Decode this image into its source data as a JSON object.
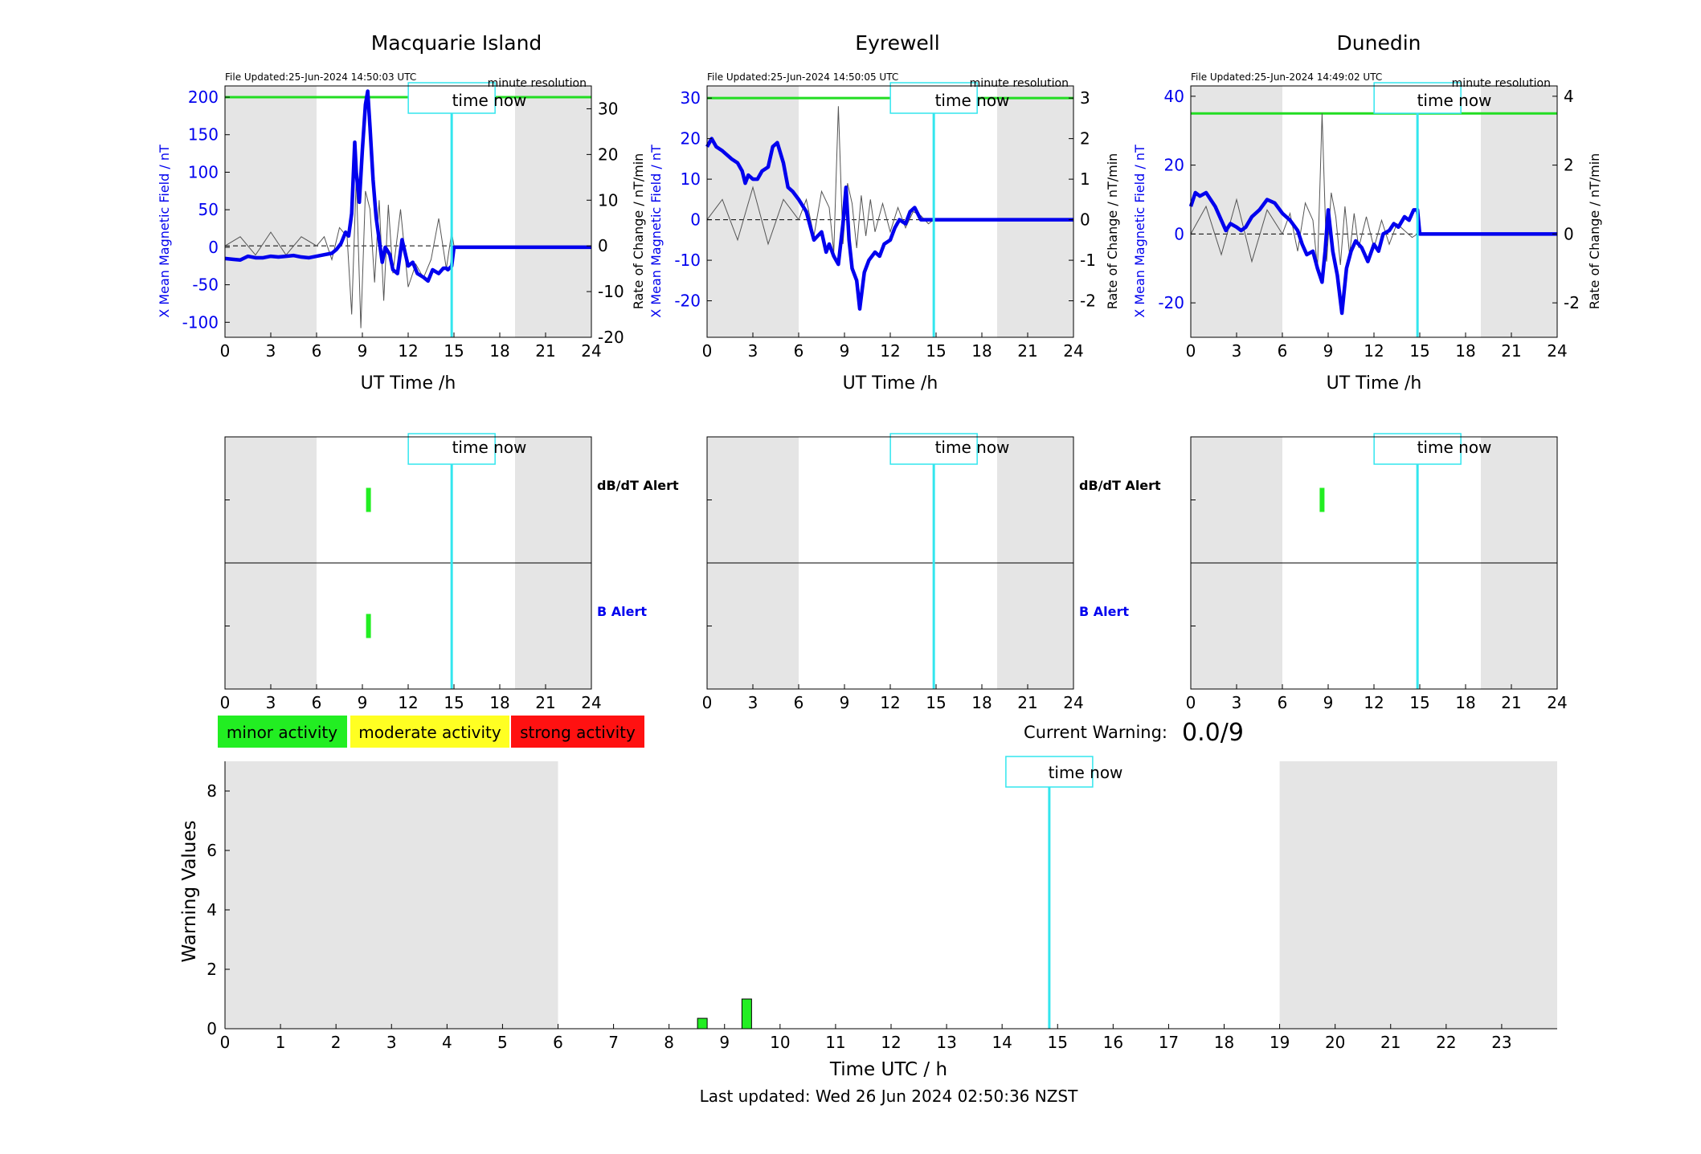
{
  "colors": {
    "shade": "#e5e5e5",
    "x_field": "#0000ee",
    "rate": "#555555",
    "threshold": "#22dd22",
    "time_now": "#33e6ee",
    "minor": "#22ee22",
    "moderate": "#ffff22",
    "strong": "#ff1111",
    "b_alert_label": "#0000ee"
  },
  "time_now_label": "time now",
  "resolution_label": "minute resolution",
  "xlabel_station": "UT Time /h",
  "ylabel_left": "X Mean Magnetic Field / nT",
  "ylabel_right": "Rate of Change / nT/min",
  "alert_labels": {
    "dbdt": "dB/dT Alert",
    "b": "B Alert"
  },
  "legend": {
    "minor": "minor activity",
    "moderate": "moderate activity",
    "strong": "strong activity"
  },
  "current_warning": {
    "label": "Current Warning:",
    "value": "0.0/9"
  },
  "last_updated": "Last updated: Wed 26 Jun 2024 02:50:36 NZST",
  "chart_data": [
    {
      "type": "line",
      "station": "Macquarie Island",
      "file_updated": "File Updated:25-Jun-2024 14:50:03 UTC",
      "xlim": [
        0,
        24
      ],
      "xticks": [
        0,
        3,
        6,
        9,
        12,
        15,
        18,
        21,
        24
      ],
      "ylim_left": [
        -120,
        215
      ],
      "yticks_left": [
        -100,
        -50,
        0,
        50,
        100,
        150,
        200
      ],
      "ylim_right": [
        -20,
        35
      ],
      "yticks_right": [
        -20,
        -10,
        0,
        10,
        20,
        30
      ],
      "threshold_left": 200,
      "time_now": 14.85,
      "night_shading": [
        [
          0,
          6
        ],
        [
          19,
          24
        ]
      ],
      "series": [
        {
          "axis": "left",
          "x": [
            0,
            0.5,
            1,
            1.5,
            2,
            2.5,
            3,
            3.5,
            4,
            4.5,
            5,
            5.5,
            6,
            6.5,
            7,
            7.3,
            7.6,
            7.9,
            8.1,
            8.3,
            8.5,
            8.6,
            8.8,
            9.0,
            9.2,
            9.35,
            9.5,
            9.7,
            9.9,
            10.1,
            10.3,
            10.5,
            10.8,
            11.0,
            11.3,
            11.6,
            12.0,
            12.3,
            12.6,
            13.0,
            13.3,
            13.6,
            14.0,
            14.3,
            14.5,
            14.6,
            14.7,
            14.85,
            15,
            24
          ],
          "y": [
            -15,
            -16,
            -17,
            -12,
            -14,
            -14,
            -12,
            -13,
            -12,
            -11,
            -13,
            -14,
            -12,
            -10,
            -8,
            -3,
            5,
            20,
            15,
            45,
            140,
            100,
            60,
            130,
            190,
            208,
            160,
            90,
            40,
            10,
            -20,
            0,
            -10,
            -30,
            -35,
            10,
            -25,
            -20,
            -35,
            -40,
            -45,
            -30,
            -35,
            -28,
            -28,
            -30,
            -28,
            -25,
            0,
            0
          ]
        },
        {
          "axis": "right",
          "x": [
            0,
            1,
            2,
            3,
            4,
            5,
            6,
            6.5,
            7,
            7.5,
            8,
            8.3,
            8.6,
            8.9,
            9.2,
            9.5,
            9.8,
            10.1,
            10.4,
            10.7,
            11,
            11.5,
            12,
            12.5,
            13,
            13.5,
            14,
            14.5,
            14.85,
            15,
            24
          ],
          "y": [
            0,
            2,
            -2,
            3,
            -2,
            2,
            0,
            2,
            -3,
            4,
            2,
            -15,
            15,
            -18,
            12,
            8,
            -8,
            10,
            -12,
            9,
            -6,
            8,
            -9,
            -4,
            -7,
            -3,
            6,
            -5,
            3,
            0,
            0
          ]
        }
      ]
    },
    {
      "type": "line",
      "station": "Eyrewell",
      "file_updated": "File Updated:25-Jun-2024 14:50:05 UTC",
      "xlim": [
        0,
        24
      ],
      "xticks": [
        0,
        3,
        6,
        9,
        12,
        15,
        18,
        21,
        24
      ],
      "ylim_left": [
        -29,
        33
      ],
      "yticks_left": [
        -20,
        -10,
        0,
        10,
        20,
        30
      ],
      "ylim_right": [
        -2.9,
        3.3
      ],
      "yticks_right": [
        -2,
        -1,
        0,
        1,
        2,
        3
      ],
      "threshold_left": 30,
      "time_now": 14.85,
      "night_shading": [
        [
          0,
          6
        ],
        [
          19,
          24
        ]
      ],
      "series": [
        {
          "axis": "left",
          "x": [
            0,
            0.3,
            0.6,
            1,
            1.3,
            1.6,
            2,
            2.3,
            2.5,
            2.7,
            3,
            3.3,
            3.6,
            4.0,
            4.3,
            4.6,
            5.0,
            5.3,
            5.6,
            6.0,
            6.5,
            7.0,
            7.5,
            7.8,
            8.0,
            8.3,
            8.6,
            8.9,
            9.1,
            9.3,
            9.5,
            9.8,
            10.0,
            10.3,
            10.6,
            11.0,
            11.3,
            11.6,
            12.0,
            12.3,
            12.6,
            13.0,
            13.3,
            13.6,
            14.0,
            14.3,
            14.85,
            15,
            24
          ],
          "y": [
            18,
            20,
            18,
            17,
            16,
            15,
            14,
            12,
            9,
            11,
            10,
            10,
            12,
            13,
            18,
            19,
            14,
            8,
            7,
            5,
            2,
            -5,
            -3,
            -8,
            -6,
            -9,
            -11,
            -1,
            8,
            -5,
            -12,
            -15,
            -22,
            -13,
            -10,
            -8,
            -9,
            -6,
            -5,
            -2,
            0,
            -1,
            2,
            3,
            0,
            0,
            0,
            0,
            0
          ]
        },
        {
          "axis": "right",
          "x": [
            0,
            1,
            2,
            3,
            4,
            5,
            6,
            6.5,
            7,
            7.5,
            8,
            8.3,
            8.6,
            8.9,
            9.2,
            9.5,
            9.8,
            10.1,
            10.4,
            10.7,
            11,
            11.5,
            12,
            12.5,
            13,
            13.5,
            14,
            14.5,
            14.85,
            15,
            24
          ],
          "y": [
            0,
            0.5,
            -0.5,
            0.8,
            -0.6,
            0.5,
            0,
            0.5,
            -0.4,
            0.7,
            0.3,
            -0.8,
            2.8,
            -0.6,
            0.9,
            0.4,
            -0.7,
            0.6,
            -0.4,
            0.5,
            -0.3,
            0.4,
            -0.3,
            0.3,
            -0.2,
            0.2,
            0.1,
            -0.1,
            0,
            0,
            0
          ]
        }
      ]
    },
    {
      "type": "line",
      "station": "Dunedin",
      "file_updated": "File Updated:25-Jun-2024 14:49:02 UTC",
      "xlim": [
        0,
        24
      ],
      "xticks": [
        0,
        3,
        6,
        9,
        12,
        15,
        18,
        21,
        24
      ],
      "ylim_left": [
        -30,
        43
      ],
      "yticks_left": [
        -20,
        0,
        20,
        40
      ],
      "ylim_right": [
        -3,
        4.3
      ],
      "yticks_right": [
        -2,
        0,
        2,
        4
      ],
      "threshold_left": 35,
      "time_now": 14.85,
      "night_shading": [
        [
          0,
          6
        ],
        [
          19,
          24
        ]
      ],
      "series": [
        {
          "axis": "left",
          "x": [
            0,
            0.3,
            0.6,
            1,
            1.3,
            1.6,
            2,
            2.3,
            2.6,
            3,
            3.3,
            3.6,
            4,
            4.5,
            5,
            5.5,
            6,
            6.5,
            7,
            7.3,
            7.6,
            8,
            8.3,
            8.6,
            8.8,
            9.0,
            9.3,
            9.6,
            9.9,
            10.2,
            10.5,
            10.8,
            11.2,
            11.6,
            12.0,
            12.3,
            12.6,
            13.0,
            13.3,
            13.6,
            14.0,
            14.3,
            14.6,
            14.85,
            15,
            24
          ],
          "y": [
            8,
            12,
            11,
            12,
            10,
            8,
            4,
            1,
            3,
            2,
            1,
            2,
            5,
            7,
            10,
            9,
            6,
            4,
            1,
            -3,
            -6,
            -5,
            -10,
            -14,
            -5,
            7,
            -5,
            -12,
            -23,
            -10,
            -5,
            -2,
            -4,
            -8,
            -3,
            -5,
            0,
            1,
            3,
            2,
            5,
            4,
            7,
            7,
            0,
            0
          ]
        },
        {
          "axis": "right",
          "x": [
            0,
            1,
            2,
            3,
            4,
            5,
            6,
            6.5,
            7,
            7.5,
            8,
            8.3,
            8.6,
            8.9,
            9.2,
            9.5,
            9.8,
            10.1,
            10.4,
            10.7,
            11,
            11.5,
            12,
            12.5,
            13,
            13.5,
            14,
            14.5,
            14.85,
            15,
            24
          ],
          "y": [
            0,
            0.8,
            -0.6,
            1.0,
            -0.8,
            0.7,
            0,
            0.6,
            -0.5,
            0.9,
            0.4,
            -1.0,
            3.5,
            -0.8,
            1.2,
            0.5,
            -0.9,
            0.8,
            -0.6,
            0.6,
            -0.4,
            0.5,
            -0.4,
            0.4,
            -0.3,
            0.3,
            0.1,
            -0.1,
            0,
            0,
            0
          ]
        }
      ]
    },
    {
      "type": "bar",
      "panel": "alerts",
      "station": "Macquarie Island",
      "xlim": [
        0,
        24
      ],
      "xticks": [
        0,
        3,
        6,
        9,
        12,
        15,
        18,
        21,
        24
      ],
      "time_now": 14.85,
      "night_shading": [
        [
          0,
          6
        ],
        [
          19,
          24
        ]
      ],
      "dbdt_alerts": [
        {
          "time": 9.4,
          "level": "minor"
        }
      ],
      "b_alerts": [
        {
          "time": 9.4,
          "level": "minor"
        }
      ]
    },
    {
      "type": "bar",
      "panel": "alerts",
      "station": "Eyrewell",
      "xlim": [
        0,
        24
      ],
      "xticks": [
        0,
        3,
        6,
        9,
        12,
        15,
        18,
        21,
        24
      ],
      "time_now": 14.85,
      "night_shading": [
        [
          0,
          6
        ],
        [
          19,
          24
        ]
      ],
      "dbdt_alerts": [],
      "b_alerts": []
    },
    {
      "type": "bar",
      "panel": "alerts",
      "station": "Dunedin",
      "xlim": [
        0,
        24
      ],
      "xticks": [
        0,
        3,
        6,
        9,
        12,
        15,
        18,
        21,
        24
      ],
      "time_now": 14.85,
      "night_shading": [
        [
          0,
          6
        ],
        [
          19,
          24
        ]
      ],
      "dbdt_alerts": [
        {
          "time": 8.6,
          "level": "minor"
        }
      ],
      "b_alerts": []
    },
    {
      "type": "bar",
      "panel": "warning",
      "xlabel": "Time UTC / h",
      "ylabel": "Warning Values",
      "xlim": [
        0,
        24
      ],
      "xticks": [
        0,
        1,
        2,
        3,
        4,
        5,
        6,
        7,
        8,
        9,
        10,
        11,
        12,
        13,
        14,
        15,
        16,
        17,
        18,
        19,
        20,
        21,
        22,
        23
      ],
      "ylim": [
        0,
        9
      ],
      "yticks": [
        0,
        2,
        4,
        6,
        8
      ],
      "time_now": 14.85,
      "night_shading": [
        [
          0,
          6
        ],
        [
          19,
          24
        ]
      ],
      "bars": [
        {
          "x": 8.6,
          "value": 0.35,
          "level": "minor"
        },
        {
          "x": 9.4,
          "value": 1.0,
          "level": "minor"
        }
      ]
    }
  ]
}
